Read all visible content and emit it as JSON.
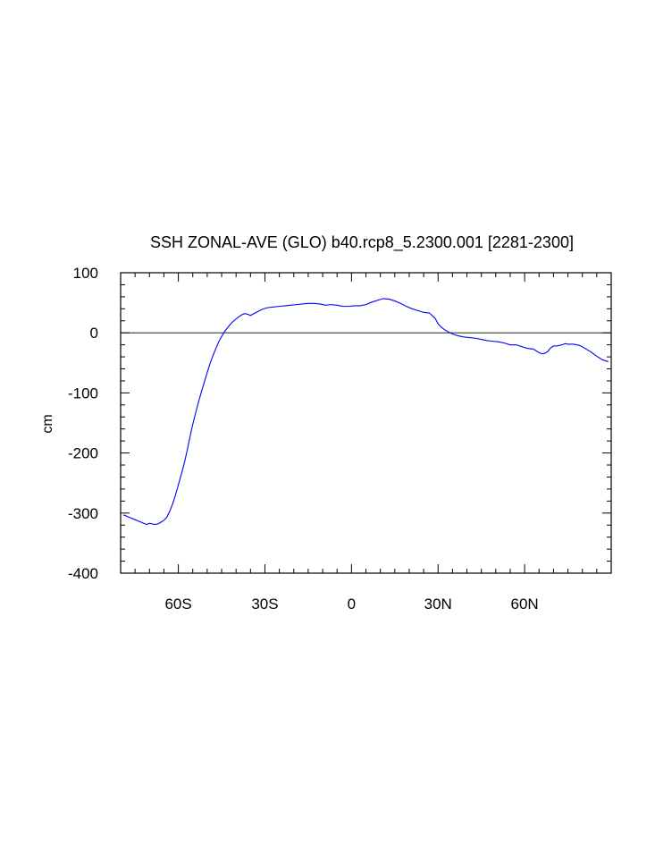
{
  "chart_data": {
    "type": "line",
    "title": "SSH ZONAL-AVE (GLO) b40.rcp8_5.2300.001 [2281-2300]",
    "xlabel": "",
    "ylabel": "cm",
    "xlim": [
      -80,
      90
    ],
    "ylim": [
      -400,
      100
    ],
    "x_ticks": [
      {
        "value": -60,
        "label": "60S"
      },
      {
        "value": -30,
        "label": "30S"
      },
      {
        "value": 0,
        "label": "0"
      },
      {
        "value": 30,
        "label": "30N"
      },
      {
        "value": 60,
        "label": "60N"
      }
    ],
    "y_ticks": [
      {
        "value": 100,
        "label": "100"
      },
      {
        "value": 0,
        "label": "0"
      },
      {
        "value": -100,
        "label": "-100"
      },
      {
        "value": -200,
        "label": "-200"
      },
      {
        "value": -300,
        "label": "-300"
      },
      {
        "value": -400,
        "label": "-400"
      }
    ],
    "reference_line": 0,
    "grid": false,
    "series": [
      {
        "color": "#0000ff",
        "x": [
          -79,
          -77,
          -75,
          -73,
          -71,
          -70,
          -69,
          -68,
          -67,
          -66,
          -65,
          -64,
          -63,
          -62,
          -61,
          -60,
          -59,
          -58,
          -57,
          -56,
          -55,
          -54,
          -53,
          -52,
          -51,
          -50,
          -49,
          -48,
          -47,
          -46,
          -45,
          -44,
          -43,
          -42,
          -41,
          -40,
          -39,
          -38,
          -37,
          -36,
          -35,
          -33,
          -31,
          -29,
          -27,
          -25,
          -23,
          -21,
          -19,
          -17,
          -15,
          -13,
          -11,
          -9,
          -7,
          -5,
          -3,
          -1,
          1,
          3,
          5,
          7,
          9,
          11,
          13,
          15,
          17,
          19,
          21,
          23,
          25,
          27,
          29,
          30,
          31,
          32,
          33,
          35,
          37,
          39,
          41,
          43,
          45,
          47,
          49,
          51,
          53,
          55,
          57,
          59,
          61,
          63,
          65,
          66,
          67,
          68,
          69,
          70,
          71,
          72,
          73,
          74,
          75,
          77,
          79,
          81,
          83,
          85,
          87,
          89
        ],
        "y": [
          -303,
          -307,
          -311,
          -315,
          -319,
          -317,
          -318,
          -319,
          -318,
          -315,
          -312,
          -307,
          -297,
          -285,
          -270,
          -253,
          -236,
          -218,
          -197,
          -174,
          -152,
          -133,
          -115,
          -98,
          -82,
          -66,
          -51,
          -38,
          -26,
          -15,
          -6,
          2,
          8,
          14,
          19,
          23,
          27,
          30,
          32,
          31,
          29,
          34,
          39,
          42,
          43,
          44,
          45,
          46,
          47,
          48,
          49,
          49,
          48,
          46,
          47,
          46,
          44,
          44,
          45,
          45,
          47,
          51,
          54,
          57,
          56,
          53,
          49,
          44,
          40,
          37,
          34,
          33,
          24,
          15,
          10,
          6,
          3,
          -2,
          -5,
          -7,
          -8,
          -9,
          -11,
          -13,
          -14,
          -15,
          -17,
          -20,
          -20,
          -23,
          -26,
          -27,
          -33,
          -35,
          -34,
          -31,
          -25,
          -22,
          -22,
          -21,
          -20,
          -18,
          -19,
          -19,
          -21,
          -26,
          -32,
          -39,
          -45,
          -48
        ]
      }
    ]
  }
}
